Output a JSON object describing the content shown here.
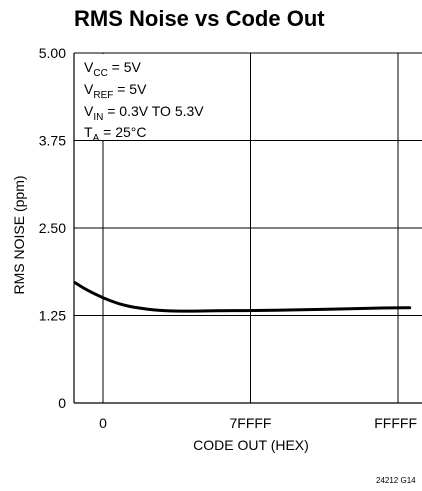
{
  "chart_data": {
    "type": "line",
    "title": "RMS Noise vs Code Out",
    "xlabel": "CODE OUT (HEX)",
    "ylabel": "RMS NOISE (ppm)",
    "ylim": [
      0,
      5
    ],
    "yticks": [
      {
        "value": 0,
        "label": "0"
      },
      {
        "value": 1.25,
        "label": "1.25"
      },
      {
        "value": 2.5,
        "label": "2.50"
      },
      {
        "value": 3.75,
        "label": "3.75"
      },
      {
        "value": 5,
        "label": "5.00"
      }
    ],
    "xlim": [
      0,
      1048575
    ],
    "xticks": [
      {
        "value": 0,
        "label": "0"
      },
      {
        "value": 524287,
        "label": "7FFFF"
      },
      {
        "value": 1048575,
        "label": "FFFFF"
      }
    ],
    "grid": true,
    "annotations": [
      {
        "main": "V",
        "sub": "CC",
        "rest": " = 5V"
      },
      {
        "main": "V",
        "sub": "REF",
        "rest": " = 5V"
      },
      {
        "main": "V",
        "sub": "IN",
        "rest": " = 0.3V TO 5.3V"
      },
      {
        "main": "T",
        "sub": "A",
        "rest": " = 25°C"
      }
    ],
    "figure_code": "24212 G14",
    "series": [
      {
        "x": [
          -100000,
          -60000,
          0,
          60000,
          120000,
          200000,
          300000,
          400000,
          524287,
          700000,
          900000,
          1048575,
          1090000
        ],
        "y": [
          1.72,
          1.62,
          1.5,
          1.41,
          1.36,
          1.32,
          1.31,
          1.32,
          1.32,
          1.33,
          1.35,
          1.36,
          1.36
        ]
      }
    ]
  }
}
